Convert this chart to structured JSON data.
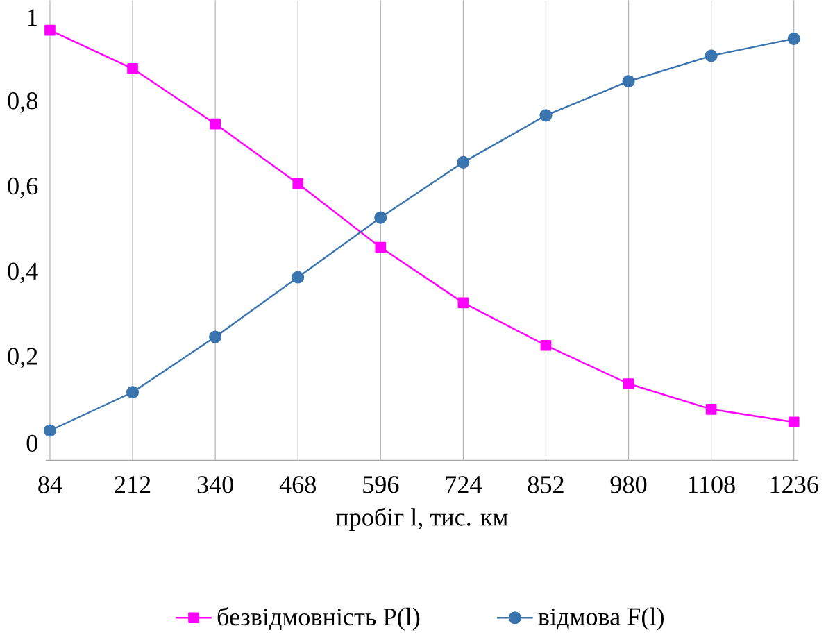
{
  "chart_data": {
    "type": "line",
    "xlabel": "пробіг l, тис. км",
    "categories": [
      "84",
      "212",
      "340",
      "468",
      "596",
      "724",
      "852",
      "980",
      "1108",
      "1236"
    ],
    "series": [
      {
        "name": "безвідмовність P(l)",
        "color": "#ff00ff",
        "marker": "square",
        "values": [
          0.97,
          0.88,
          0.75,
          0.61,
          0.46,
          0.33,
          0.23,
          0.14,
          0.08,
          0.05
        ]
      },
      {
        "name": "відмова F(l)",
        "color": "#3a75b0",
        "marker": "circle",
        "values": [
          0.03,
          0.12,
          0.25,
          0.39,
          0.53,
          0.66,
          0.77,
          0.85,
          0.91,
          0.95
        ]
      }
    ],
    "ylim": [
      0,
      1
    ],
    "yticks": [
      0,
      {
        "value": 0.2,
        "label": "0,2"
      },
      {
        "value": 0.4,
        "label": "0,4"
      },
      {
        "value": 0.6,
        "label": "0,6"
      },
      {
        "value": 0.8,
        "label": "0,8"
      },
      1
    ],
    "grid": "x",
    "legend": "bottom"
  }
}
